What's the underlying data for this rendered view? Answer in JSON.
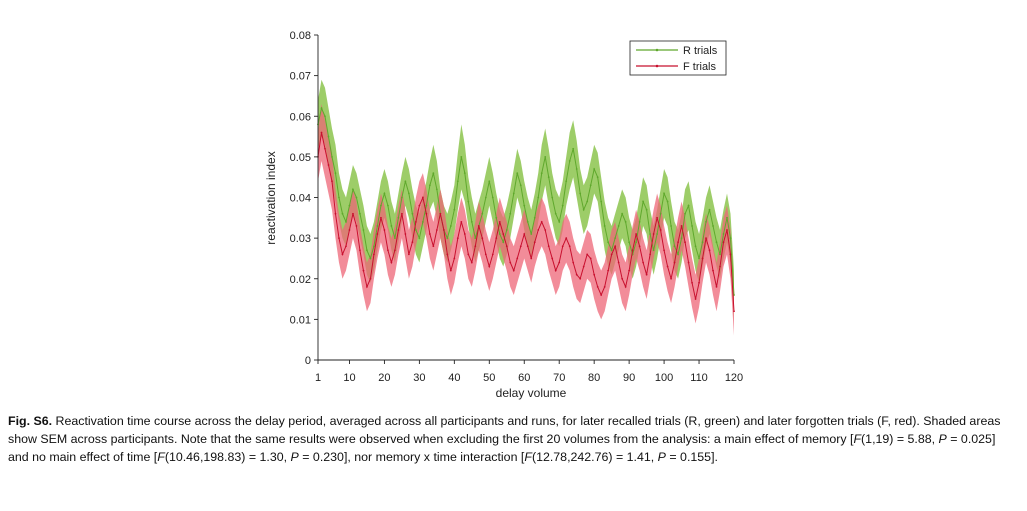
{
  "chart_data": {
    "type": "line",
    "xlabel": "delay volume",
    "ylabel": "reactivation index",
    "xlim": [
      1,
      120
    ],
    "ylim": [
      0,
      0.08
    ],
    "x_ticks": [
      "1",
      "10",
      "20",
      "30",
      "40",
      "50",
      "60",
      "70",
      "80",
      "90",
      "100",
      "110",
      "120"
    ],
    "y_ticks": [
      "0",
      "0.01",
      "0.02",
      "0.03",
      "0.04",
      "0.05",
      "0.06",
      "0.07",
      "0.08"
    ],
    "legend_position": "top-right",
    "series": [
      {
        "name": "R trials",
        "color": "#5fa82c",
        "band_color": "#8cc44e",
        "mean": [
          0.058,
          0.062,
          0.06,
          0.055,
          0.05,
          0.046,
          0.04,
          0.036,
          0.034,
          0.038,
          0.042,
          0.04,
          0.036,
          0.032,
          0.027,
          0.025,
          0.028,
          0.033,
          0.038,
          0.041,
          0.038,
          0.033,
          0.03,
          0.035,
          0.04,
          0.044,
          0.041,
          0.036,
          0.032,
          0.03,
          0.034,
          0.038,
          0.043,
          0.046,
          0.042,
          0.036,
          0.032,
          0.03,
          0.033,
          0.037,
          0.044,
          0.05,
          0.046,
          0.039,
          0.034,
          0.03,
          0.033,
          0.036,
          0.04,
          0.044,
          0.04,
          0.035,
          0.031,
          0.029,
          0.032,
          0.036,
          0.041,
          0.046,
          0.043,
          0.038,
          0.034,
          0.031,
          0.035,
          0.04,
          0.046,
          0.05,
          0.045,
          0.04,
          0.036,
          0.034,
          0.038,
          0.044,
          0.049,
          0.052,
          0.047,
          0.041,
          0.037,
          0.039,
          0.043,
          0.047,
          0.045,
          0.039,
          0.033,
          0.029,
          0.027,
          0.03,
          0.033,
          0.036,
          0.034,
          0.029,
          0.026,
          0.029,
          0.034,
          0.039,
          0.037,
          0.031,
          0.027,
          0.031,
          0.036,
          0.041,
          0.039,
          0.033,
          0.028,
          0.026,
          0.03,
          0.036,
          0.038,
          0.033,
          0.028,
          0.025,
          0.029,
          0.034,
          0.037,
          0.033,
          0.029,
          0.026,
          0.031,
          0.035,
          0.03,
          0.016
        ],
        "sem": [
          0.006,
          0.007,
          0.007,
          0.007,
          0.007,
          0.007,
          0.006,
          0.006,
          0.006,
          0.006,
          0.006,
          0.006,
          0.006,
          0.006,
          0.006,
          0.006,
          0.006,
          0.006,
          0.006,
          0.006,
          0.006,
          0.006,
          0.006,
          0.006,
          0.006,
          0.006,
          0.006,
          0.006,
          0.006,
          0.006,
          0.006,
          0.006,
          0.006,
          0.007,
          0.007,
          0.006,
          0.006,
          0.006,
          0.006,
          0.006,
          0.007,
          0.008,
          0.007,
          0.006,
          0.006,
          0.006,
          0.006,
          0.006,
          0.006,
          0.006,
          0.006,
          0.006,
          0.006,
          0.006,
          0.006,
          0.006,
          0.006,
          0.006,
          0.006,
          0.006,
          0.006,
          0.006,
          0.006,
          0.006,
          0.007,
          0.007,
          0.007,
          0.006,
          0.006,
          0.006,
          0.006,
          0.006,
          0.007,
          0.007,
          0.007,
          0.006,
          0.006,
          0.006,
          0.006,
          0.006,
          0.006,
          0.006,
          0.006,
          0.006,
          0.006,
          0.006,
          0.006,
          0.006,
          0.006,
          0.006,
          0.006,
          0.006,
          0.006,
          0.006,
          0.006,
          0.006,
          0.006,
          0.006,
          0.006,
          0.006,
          0.006,
          0.006,
          0.006,
          0.006,
          0.006,
          0.006,
          0.006,
          0.006,
          0.006,
          0.006,
          0.006,
          0.006,
          0.006,
          0.006,
          0.006,
          0.006,
          0.006,
          0.006,
          0.006,
          0.006
        ]
      },
      {
        "name": "F trials",
        "color": "#c8102e",
        "band_color": "#ee6677",
        "mean": [
          0.05,
          0.056,
          0.052,
          0.048,
          0.044,
          0.036,
          0.03,
          0.026,
          0.028,
          0.032,
          0.036,
          0.033,
          0.027,
          0.022,
          0.018,
          0.02,
          0.026,
          0.031,
          0.035,
          0.032,
          0.027,
          0.024,
          0.027,
          0.032,
          0.036,
          0.031,
          0.026,
          0.029,
          0.034,
          0.038,
          0.04,
          0.036,
          0.031,
          0.028,
          0.032,
          0.036,
          0.032,
          0.026,
          0.022,
          0.025,
          0.03,
          0.034,
          0.031,
          0.026,
          0.024,
          0.028,
          0.033,
          0.03,
          0.026,
          0.023,
          0.026,
          0.03,
          0.034,
          0.031,
          0.028,
          0.024,
          0.022,
          0.025,
          0.028,
          0.031,
          0.028,
          0.025,
          0.029,
          0.032,
          0.034,
          0.032,
          0.028,
          0.025,
          0.022,
          0.024,
          0.028,
          0.03,
          0.028,
          0.024,
          0.021,
          0.02,
          0.023,
          0.026,
          0.025,
          0.021,
          0.018,
          0.016,
          0.018,
          0.022,
          0.026,
          0.028,
          0.024,
          0.02,
          0.018,
          0.022,
          0.027,
          0.031,
          0.028,
          0.024,
          0.021,
          0.026,
          0.031,
          0.035,
          0.032,
          0.027,
          0.023,
          0.02,
          0.024,
          0.029,
          0.033,
          0.029,
          0.024,
          0.019,
          0.015,
          0.019,
          0.025,
          0.03,
          0.027,
          0.022,
          0.018,
          0.023,
          0.029,
          0.032,
          0.026,
          0.012
        ],
        "sem": [
          0.006,
          0.007,
          0.007,
          0.007,
          0.007,
          0.006,
          0.006,
          0.006,
          0.006,
          0.006,
          0.006,
          0.006,
          0.006,
          0.006,
          0.006,
          0.006,
          0.006,
          0.006,
          0.006,
          0.006,
          0.006,
          0.006,
          0.006,
          0.006,
          0.006,
          0.006,
          0.006,
          0.006,
          0.006,
          0.006,
          0.006,
          0.006,
          0.006,
          0.006,
          0.006,
          0.006,
          0.006,
          0.006,
          0.006,
          0.006,
          0.006,
          0.006,
          0.006,
          0.006,
          0.006,
          0.006,
          0.006,
          0.006,
          0.006,
          0.006,
          0.006,
          0.006,
          0.006,
          0.006,
          0.006,
          0.006,
          0.006,
          0.006,
          0.006,
          0.006,
          0.006,
          0.006,
          0.006,
          0.006,
          0.006,
          0.006,
          0.006,
          0.006,
          0.006,
          0.006,
          0.006,
          0.006,
          0.006,
          0.006,
          0.006,
          0.006,
          0.006,
          0.006,
          0.006,
          0.006,
          0.006,
          0.006,
          0.006,
          0.006,
          0.006,
          0.006,
          0.006,
          0.006,
          0.006,
          0.006,
          0.006,
          0.006,
          0.006,
          0.006,
          0.006,
          0.006,
          0.006,
          0.006,
          0.006,
          0.006,
          0.006,
          0.006,
          0.006,
          0.006,
          0.006,
          0.006,
          0.006,
          0.006,
          0.006,
          0.006,
          0.006,
          0.006,
          0.006,
          0.006,
          0.006,
          0.006,
          0.006,
          0.006,
          0.006,
          0.006
        ]
      }
    ]
  },
  "caption": {
    "label": "Fig. S6.",
    "text_1": " Reactivation time course across the delay period, averaged across all participants and runs, for later recalled trials (R, green) and later forgotten trials (F, red). Shaded areas show SEM across participants. Note that the same results were observed when excluding the first 20 volumes from the analysis: a main effect of memory [",
    "stat_1_f": "F",
    "stat_1_rest": "(1,19) = 5.88, ",
    "stat_1_p": "P",
    "stat_1_pval": " = 0.025] and no main effect of time [",
    "stat_2_f": "F",
    "stat_2_rest": "(10.46,198.83) = 1.30, ",
    "stat_2_p": "P",
    "stat_2_pval": " = 0.230], nor memory x time interaction [",
    "stat_3_f": "F",
    "stat_3_rest": "(12.78,242.76) = 1.41, ",
    "stat_3_p": "P",
    "stat_3_pval": " = 0.155]."
  }
}
